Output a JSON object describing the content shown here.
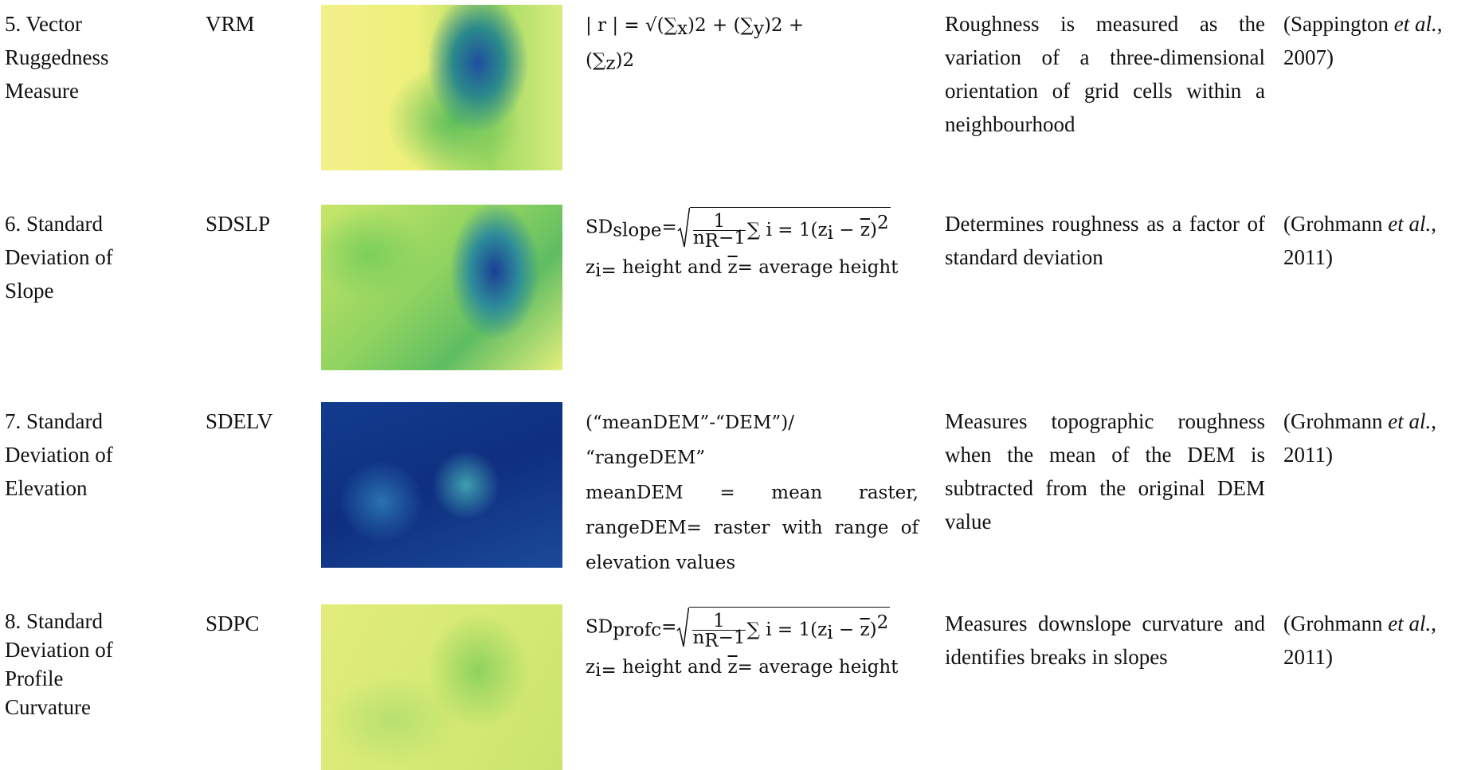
{
  "rows": [
    {
      "name": [
        "5. Vector",
        "Ruggedness",
        "Measure"
      ],
      "abbr": "VRM",
      "formula": [
        [
          {
            "t": "| r | = √(∑"
          },
          {
            "sub": "x"
          },
          {
            "t": ")2  +   (∑"
          },
          {
            "sub": "y"
          },
          {
            "t": ")2  + "
          }
        ],
        [
          {
            "t": "(∑"
          },
          {
            "sub": "z"
          },
          {
            "t": ")2"
          }
        ]
      ],
      "description": "Roughness is measured as the variation of a three-dimensional orientation of grid cells within a neighbourhood",
      "reference": {
        "author": "(Sappington ",
        "etal": "et al.",
        "year": ", 2007)"
      }
    },
    {
      "name": [
        "6. Standard",
        "Deviation of",
        "Slope"
      ],
      "abbr": "SDSLP",
      "formula": [
        [
          {
            "t": "SD"
          },
          {
            "sub": "slope"
          },
          {
            "t": "="
          },
          {
            "sqrt": [
              {
                "frac": {
                  "num": [
                    {
                      "t": "1"
                    }
                  ],
                  "den": [
                    {
                      "t": "n"
                    },
                    {
                      "sub": "R"
                    },
                    {
                      "t": "−1"
                    }
                  ]
                }
              },
              {
                "t": "∑ i = 1(z"
              },
              {
                "sub": "i"
              },
              {
                "t": " − "
              },
              {
                "bar": "z"
              },
              {
                "t": ")"
              },
              {
                "sup": "2"
              }
            ]
          }
        ],
        [
          {
            "t": "z"
          },
          {
            "sub": "i="
          },
          {
            "t": " height and "
          },
          {
            "bar": "z"
          },
          {
            "t": "= average height"
          }
        ]
      ],
      "description": "Determines roughness as a factor of standard deviation",
      "reference": {
        "author": "(Grohmann ",
        "etal": "et al.",
        "year": ", 2011)"
      }
    },
    {
      "name": [
        "7. Standard",
        "Deviation of",
        "Elevation"
      ],
      "abbr": "SDELV",
      "formula": [
        [
          {
            "t": "(“meanDEM”-“DEM”)/"
          }
        ],
        [
          {
            "t": "“rangeDEM”"
          }
        ],
        [
          {
            "t": "meanDEM = mean raster, rangeDEM= raster with range of elevation values"
          }
        ]
      ],
      "description": "Measures topographic roughness when the mean of the DEM is subtracted from the original DEM value",
      "reference": {
        "author": "(Grohmann ",
        "etal": "et al.",
        "year": ", 2011)"
      }
    },
    {
      "name": [
        "8. Standard",
        "Deviation of",
        "Profile",
        "Curvature"
      ],
      "abbr": "SDPC",
      "formula": [
        [
          {
            "t": "SD"
          },
          {
            "sub": "profc"
          },
          {
            "t": "="
          },
          {
            "sqrt": [
              {
                "frac": {
                  "num": [
                    {
                      "t": "1"
                    }
                  ],
                  "den": [
                    {
                      "t": "n"
                    },
                    {
                      "sub": "R"
                    },
                    {
                      "t": "−1"
                    }
                  ]
                }
              },
              {
                "t": "∑ i = 1(z"
              },
              {
                "sub": "i"
              },
              {
                "t": " − "
              },
              {
                "bar": "z"
              },
              {
                "t": ")"
              },
              {
                "sup": "2"
              }
            ]
          }
        ],
        [
          {
            "t": "z"
          },
          {
            "sub": "i="
          },
          {
            "t": " height and "
          },
          {
            "bar": "z"
          },
          {
            "t": "= average height"
          }
        ]
      ],
      "description": "Measures downslope curvature and identifies breaks in slopes",
      "reference": {
        "author": "(Grohmann ",
        "etal": "et al.",
        "year": ", 2011)"
      }
    }
  ]
}
